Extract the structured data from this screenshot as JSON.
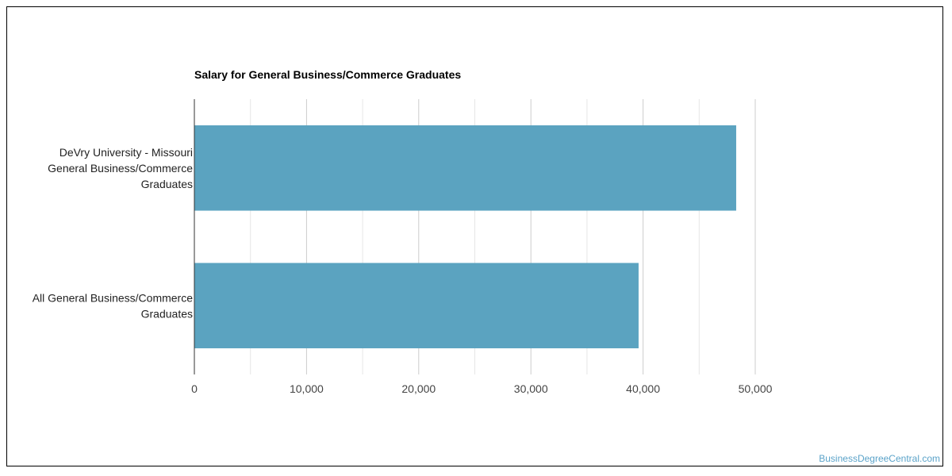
{
  "chart_data": {
    "type": "bar",
    "orientation": "horizontal",
    "title": "Salary for General Business/Commerce Graduates",
    "categories": [
      [
        "DeVry University - Missouri",
        "General Business/Commerce",
        "Graduates"
      ],
      [
        "All General Business/Commerce",
        "Graduates"
      ]
    ],
    "values": [
      48300,
      39600
    ],
    "xlim": [
      0,
      50000
    ],
    "xticks": [
      "0",
      "10,000",
      "20,000",
      "30,000",
      "40,000",
      "50,000"
    ],
    "grid": true,
    "bar_color": "#5ba3c0"
  },
  "watermark": "BusinessDegreeCentral.com"
}
